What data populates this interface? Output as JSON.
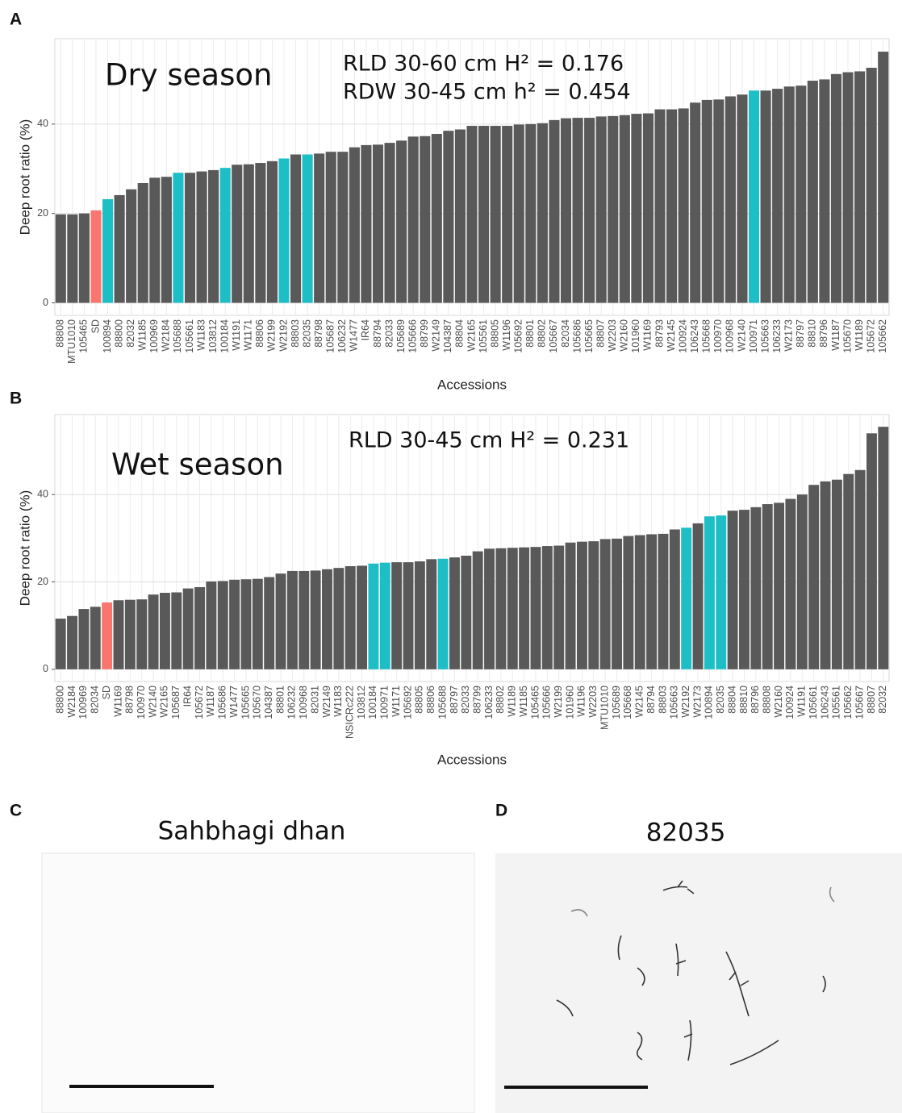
{
  "chart_data": [
    {
      "type": "bar",
      "panel_label": "A",
      "annotations": [
        "Dry season",
        "RLD 30-60 cm  H² = 0.176",
        "RDW 30-45 cm h² = 0.454"
      ],
      "x_label": "Accessions",
      "y_label": "Deep root ratio (%)",
      "categories": [
        "88808",
        "MTU1010",
        "105465",
        "SD",
        "100894",
        "88800",
        "82032",
        "W1185",
        "100969",
        "W2184",
        "105688",
        "105661",
        "W1183",
        "103812",
        "100184",
        "W1191",
        "W1171",
        "88806",
        "W2199",
        "W2192",
        "88803",
        "82035",
        "88798",
        "105687",
        "106232",
        "W1477",
        "IR64",
        "88794",
        "82033",
        "105689",
        "105666",
        "88799",
        "W2149",
        "104387",
        "88804",
        "W2165",
        "105561",
        "88805",
        "W1196",
        "105692",
        "88801",
        "88802",
        "105667",
        "82034",
        "105686",
        "105665",
        "88807",
        "W2203",
        "W2160",
        "101960",
        "W1169",
        "88793",
        "W2145",
        "100924",
        "106243",
        "105668",
        "100970",
        "100968",
        "W2140",
        "100971",
        "105663",
        "106233",
        "W2173",
        "88797",
        "88810",
        "88796",
        "W1187",
        "105670",
        "W1189",
        "105672",
        "105662"
      ],
      "values": [
        19.8,
        19.8,
        20.0,
        20.7,
        23.2,
        24.1,
        25.4,
        26.8,
        28.0,
        28.2,
        29.1,
        29.1,
        29.4,
        29.7,
        30.2,
        30.9,
        31.0,
        31.3,
        31.7,
        32.3,
        33.2,
        33.2,
        33.4,
        33.8,
        33.8,
        34.8,
        35.3,
        35.4,
        35.8,
        36.3,
        37.2,
        37.3,
        37.8,
        38.5,
        38.8,
        39.6,
        39.6,
        39.6,
        39.6,
        39.9,
        40.0,
        40.2,
        40.9,
        41.3,
        41.4,
        41.4,
        41.7,
        41.8,
        42.0,
        42.3,
        42.4,
        43.3,
        43.3,
        43.5,
        44.8,
        45.4,
        45.5,
        46.2,
        46.6,
        47.5,
        47.5,
        47.9,
        48.4,
        48.6,
        49.7,
        50.0,
        51.2,
        51.6,
        51.8,
        52.6,
        56.2
      ],
      "colors": [
        "#595959",
        "#595959",
        "#595959",
        "#f8766d",
        "#1ebec7",
        "#595959",
        "#595959",
        "#595959",
        "#595959",
        "#595959",
        "#1ebec7",
        "#595959",
        "#595959",
        "#595959",
        "#1ebec7",
        "#595959",
        "#595959",
        "#595959",
        "#595959",
        "#1ebec7",
        "#595959",
        "#1ebec7",
        "#595959",
        "#595959",
        "#595959",
        "#595959",
        "#595959",
        "#595959",
        "#595959",
        "#595959",
        "#595959",
        "#595959",
        "#595959",
        "#595959",
        "#595959",
        "#595959",
        "#595959",
        "#595959",
        "#595959",
        "#595959",
        "#595959",
        "#595959",
        "#595959",
        "#595959",
        "#595959",
        "#595959",
        "#595959",
        "#595959",
        "#595959",
        "#595959",
        "#595959",
        "#595959",
        "#595959",
        "#595959",
        "#595959",
        "#595959",
        "#595959",
        "#595959",
        "#595959",
        "#1ebec7",
        "#595959",
        "#595959",
        "#595959",
        "#595959",
        "#595959",
        "#595959",
        "#595959",
        "#595959",
        "#595959",
        "#595959",
        "#595959"
      ],
      "ylim": [
        -2.8,
        59.1
      ],
      "yticks": [
        0,
        20,
        40
      ],
      "grid": true
    },
    {
      "type": "bar",
      "panel_label": "B",
      "annotations": [
        "Wet season",
        "RLD 30-45 cm H² = 0.231"
      ],
      "x_label": "Accessions",
      "y_label": "Deep root ratio (%)",
      "categories": [
        "88800",
        "W2184",
        "100969",
        "82034",
        "SD",
        "W1169",
        "88798",
        "100970",
        "W2140",
        "W2165",
        "105687",
        "IR64",
        "105672",
        "W1187",
        "105686",
        "W1477",
        "105665",
        "105670",
        "104387",
        "88801",
        "106232",
        "100968",
        "82031",
        "W2149",
        "W1183",
        "NSICRc222",
        "103812",
        "100184",
        "100971",
        "W1171",
        "105692",
        "88805",
        "88806",
        "105688",
        "88797",
        "82033",
        "88799",
        "106233",
        "88802",
        "W1189",
        "W1185",
        "105465",
        "105666",
        "W2199",
        "101960",
        "W1196",
        "W2203",
        "MTU1010",
        "105689",
        "105668",
        "W2145",
        "88794",
        "88803",
        "105663",
        "W2192",
        "W2173",
        "100894",
        "82035",
        "88804",
        "88810",
        "88796",
        "88808",
        "W2160",
        "100924",
        "W1191",
        "105661",
        "106243",
        "105561",
        "105662",
        "105667",
        "88807",
        "82032"
      ],
      "values": [
        11.6,
        12.2,
        13.8,
        14.3,
        15.3,
        15.8,
        15.9,
        16.0,
        17.1,
        17.5,
        17.6,
        18.5,
        18.8,
        20.1,
        20.2,
        20.5,
        20.6,
        20.7,
        21.1,
        21.9,
        22.5,
        22.5,
        22.6,
        22.9,
        23.2,
        23.6,
        23.7,
        24.2,
        24.4,
        24.5,
        24.5,
        24.7,
        25.2,
        25.3,
        25.6,
        26.0,
        27.0,
        27.6,
        27.7,
        27.8,
        27.9,
        28.0,
        28.2,
        28.3,
        29.0,
        29.2,
        29.3,
        29.8,
        29.9,
        30.5,
        30.7,
        30.9,
        31.0,
        32.0,
        32.4,
        33.4,
        35.0,
        35.2,
        36.3,
        36.5,
        37.1,
        37.8,
        38.1,
        39.0,
        40.0,
        42.2,
        43.0,
        43.4,
        44.7,
        45.6,
        54.0,
        55.5
      ],
      "colors": [
        "#595959",
        "#595959",
        "#595959",
        "#595959",
        "#f8766d",
        "#595959",
        "#595959",
        "#595959",
        "#595959",
        "#595959",
        "#595959",
        "#595959",
        "#595959",
        "#595959",
        "#595959",
        "#595959",
        "#595959",
        "#595959",
        "#595959",
        "#595959",
        "#595959",
        "#595959",
        "#595959",
        "#595959",
        "#595959",
        "#595959",
        "#595959",
        "#1ebec7",
        "#1ebec7",
        "#595959",
        "#595959",
        "#595959",
        "#595959",
        "#1ebec7",
        "#595959",
        "#595959",
        "#595959",
        "#595959",
        "#595959",
        "#595959",
        "#595959",
        "#595959",
        "#595959",
        "#595959",
        "#595959",
        "#595959",
        "#595959",
        "#595959",
        "#595959",
        "#595959",
        "#595959",
        "#595959",
        "#595959",
        "#595959",
        "#1ebec7",
        "#595959",
        "#1ebec7",
        "#1ebec7",
        "#595959",
        "#595959",
        "#595959",
        "#595959",
        "#595959",
        "#595959",
        "#595959",
        "#595959",
        "#595959",
        "#595959",
        "#595959",
        "#595959",
        "#595959",
        "#595959"
      ],
      "ylim": [
        -2.8,
        58.3
      ],
      "yticks": [
        0,
        20,
        40
      ],
      "grid": true
    }
  ],
  "photos": [
    {
      "panel_label": "C",
      "title": "Sahbhagi dhan"
    },
    {
      "panel_label": "D",
      "title": "82035"
    }
  ]
}
